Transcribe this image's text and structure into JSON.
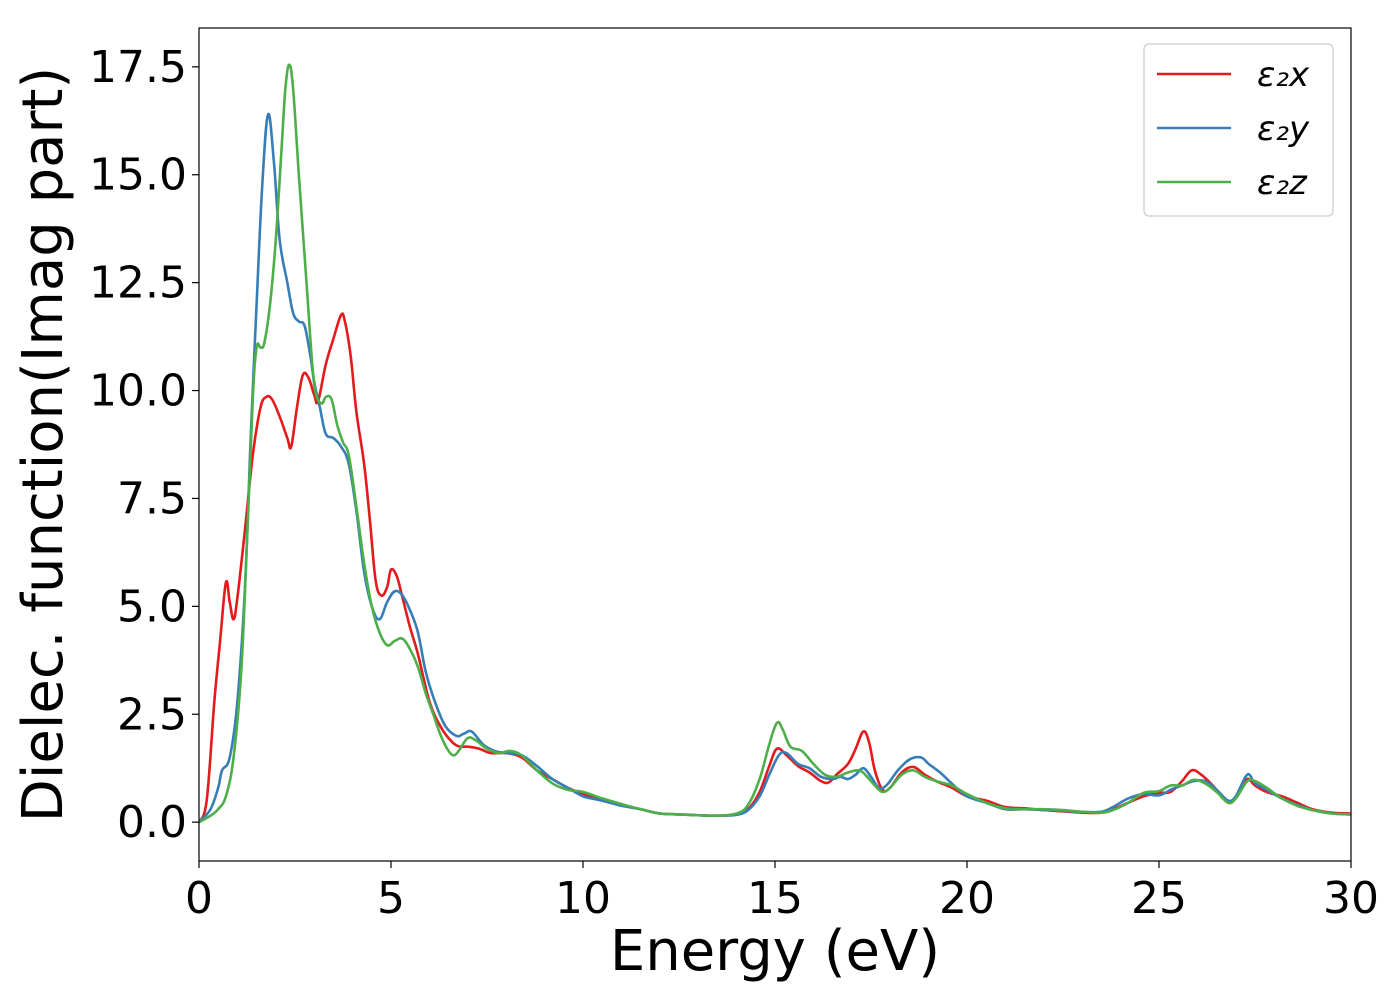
{
  "chart_data": {
    "type": "line",
    "xlabel": "Energy (eV)",
    "ylabel": "Dielec. function(Imag part)",
    "xlim": [
      0,
      30
    ],
    "ylim": [
      -0.9,
      18.4
    ],
    "xticks": [
      0,
      5,
      10,
      15,
      20,
      25,
      30
    ],
    "xtick_labels": [
      "0",
      "5",
      "10",
      "15",
      "20",
      "25",
      "30"
    ],
    "yticks": [
      0,
      2.5,
      5,
      7.5,
      10,
      12.5,
      15,
      17.5
    ],
    "ytick_labels": [
      "0.0",
      "2.5",
      "5.0",
      "7.5",
      "10.0",
      "12.5",
      "15.0",
      "17.5"
    ],
    "grid": false,
    "legend_position": "top-right",
    "series": [
      {
        "name": "ε₂x",
        "color": "#e41a1c",
        "points": [
          [
            0,
            0
          ],
          [
            0.2,
            0.5
          ],
          [
            0.4,
            2.8
          ],
          [
            0.55,
            4.2
          ],
          [
            0.7,
            5.55
          ],
          [
            0.8,
            5.1
          ],
          [
            0.9,
            4.7
          ],
          [
            1.0,
            5.2
          ],
          [
            1.2,
            6.8
          ],
          [
            1.4,
            8.5
          ],
          [
            1.6,
            9.6
          ],
          [
            1.75,
            9.85
          ],
          [
            1.9,
            9.8
          ],
          [
            2.1,
            9.4
          ],
          [
            2.3,
            8.9
          ],
          [
            2.4,
            8.7
          ],
          [
            2.55,
            9.6
          ],
          [
            2.7,
            10.35
          ],
          [
            2.85,
            10.3
          ],
          [
            3.0,
            9.9
          ],
          [
            3.1,
            9.75
          ],
          [
            3.3,
            10.6
          ],
          [
            3.5,
            11.2
          ],
          [
            3.7,
            11.75
          ],
          [
            3.8,
            11.6
          ],
          [
            3.95,
            10.8
          ],
          [
            4.1,
            9.5
          ],
          [
            4.3,
            8.3
          ],
          [
            4.45,
            7.0
          ],
          [
            4.6,
            5.6
          ],
          [
            4.75,
            5.25
          ],
          [
            4.9,
            5.45
          ],
          [
            5.0,
            5.85
          ],
          [
            5.15,
            5.7
          ],
          [
            5.3,
            5.2
          ],
          [
            5.5,
            4.5
          ],
          [
            5.7,
            3.9
          ],
          [
            6.0,
            2.8
          ],
          [
            6.3,
            2.2
          ],
          [
            6.6,
            1.85
          ],
          [
            6.8,
            1.75
          ],
          [
            7.0,
            1.75
          ],
          [
            7.3,
            1.7
          ],
          [
            7.6,
            1.6
          ],
          [
            8.0,
            1.6
          ],
          [
            8.4,
            1.5
          ],
          [
            8.8,
            1.2
          ],
          [
            9.2,
            1.0
          ],
          [
            9.6,
            0.8
          ],
          [
            10.0,
            0.65
          ],
          [
            10.5,
            0.5
          ],
          [
            11.0,
            0.4
          ],
          [
            11.5,
            0.3
          ],
          [
            12.0,
            0.2
          ],
          [
            12.5,
            0.18
          ],
          [
            13.0,
            0.16
          ],
          [
            13.5,
            0.15
          ],
          [
            14.0,
            0.18
          ],
          [
            14.3,
            0.3
          ],
          [
            14.6,
            0.7
          ],
          [
            14.85,
            1.3
          ],
          [
            15.05,
            1.7
          ],
          [
            15.3,
            1.55
          ],
          [
            15.6,
            1.3
          ],
          [
            15.9,
            1.15
          ],
          [
            16.2,
            0.95
          ],
          [
            16.4,
            0.92
          ],
          [
            16.6,
            1.1
          ],
          [
            16.9,
            1.35
          ],
          [
            17.1,
            1.7
          ],
          [
            17.3,
            2.1
          ],
          [
            17.45,
            1.85
          ],
          [
            17.6,
            1.2
          ],
          [
            17.8,
            0.75
          ],
          [
            18.0,
            0.8
          ],
          [
            18.3,
            1.15
          ],
          [
            18.6,
            1.28
          ],
          [
            18.9,
            1.1
          ],
          [
            19.2,
            0.95
          ],
          [
            19.6,
            0.8
          ],
          [
            20.0,
            0.6
          ],
          [
            20.5,
            0.5
          ],
          [
            21.0,
            0.35
          ],
          [
            21.5,
            0.32
          ],
          [
            22.0,
            0.28
          ],
          [
            22.5,
            0.25
          ],
          [
            23.0,
            0.22
          ],
          [
            23.5,
            0.22
          ],
          [
            23.8,
            0.3
          ],
          [
            24.2,
            0.45
          ],
          [
            24.6,
            0.6
          ],
          [
            25.0,
            0.68
          ],
          [
            25.3,
            0.7
          ],
          [
            25.6,
            0.95
          ],
          [
            25.85,
            1.2
          ],
          [
            26.1,
            1.1
          ],
          [
            26.4,
            0.85
          ],
          [
            26.7,
            0.55
          ],
          [
            26.9,
            0.5
          ],
          [
            27.1,
            0.7
          ],
          [
            27.3,
            1.0
          ],
          [
            27.5,
            0.85
          ],
          [
            27.8,
            0.7
          ],
          [
            28.2,
            0.6
          ],
          [
            28.6,
            0.45
          ],
          [
            29.0,
            0.3
          ],
          [
            29.5,
            0.22
          ],
          [
            30.0,
            0.2
          ]
        ]
      },
      {
        "name": "ε₂y",
        "color": "#377eb8",
        "points": [
          [
            0,
            0
          ],
          [
            0.3,
            0.3
          ],
          [
            0.5,
            0.8
          ],
          [
            0.6,
            1.2
          ],
          [
            0.8,
            1.5
          ],
          [
            1.0,
            2.8
          ],
          [
            1.2,
            5.5
          ],
          [
            1.35,
            9.0
          ],
          [
            1.5,
            12.0
          ],
          [
            1.65,
            14.8
          ],
          [
            1.8,
            16.4
          ],
          [
            1.95,
            15.3
          ],
          [
            2.1,
            13.5
          ],
          [
            2.3,
            12.5
          ],
          [
            2.45,
            11.8
          ],
          [
            2.6,
            11.6
          ],
          [
            2.75,
            11.5
          ],
          [
            2.9,
            10.8
          ],
          [
            3.0,
            10.2
          ],
          [
            3.15,
            9.6
          ],
          [
            3.3,
            9.0
          ],
          [
            3.5,
            8.9
          ],
          [
            3.7,
            8.7
          ],
          [
            3.9,
            8.3
          ],
          [
            4.1,
            7.2
          ],
          [
            4.3,
            5.8
          ],
          [
            4.5,
            5.0
          ],
          [
            4.7,
            4.7
          ],
          [
            4.9,
            5.1
          ],
          [
            5.1,
            5.35
          ],
          [
            5.3,
            5.25
          ],
          [
            5.5,
            4.9
          ],
          [
            5.7,
            4.4
          ],
          [
            5.9,
            3.5
          ],
          [
            6.1,
            2.9
          ],
          [
            6.4,
            2.25
          ],
          [
            6.7,
            2.0
          ],
          [
            6.9,
            2.05
          ],
          [
            7.1,
            2.1
          ],
          [
            7.4,
            1.8
          ],
          [
            7.7,
            1.65
          ],
          [
            8.0,
            1.6
          ],
          [
            8.4,
            1.55
          ],
          [
            8.8,
            1.3
          ],
          [
            9.2,
            1.0
          ],
          [
            9.6,
            0.8
          ],
          [
            10.0,
            0.6
          ],
          [
            10.5,
            0.5
          ],
          [
            11.0,
            0.38
          ],
          [
            11.5,
            0.3
          ],
          [
            12.0,
            0.2
          ],
          [
            12.5,
            0.18
          ],
          [
            13.0,
            0.16
          ],
          [
            13.5,
            0.15
          ],
          [
            14.0,
            0.17
          ],
          [
            14.3,
            0.28
          ],
          [
            14.6,
            0.6
          ],
          [
            14.85,
            1.1
          ],
          [
            15.1,
            1.55
          ],
          [
            15.3,
            1.6
          ],
          [
            15.6,
            1.35
          ],
          [
            15.9,
            1.25
          ],
          [
            16.2,
            1.05
          ],
          [
            16.5,
            1.0
          ],
          [
            16.7,
            1.05
          ],
          [
            16.9,
            1.0
          ],
          [
            17.1,
            1.1
          ],
          [
            17.3,
            1.25
          ],
          [
            17.5,
            1.05
          ],
          [
            17.7,
            0.8
          ],
          [
            17.9,
            0.85
          ],
          [
            18.2,
            1.2
          ],
          [
            18.5,
            1.45
          ],
          [
            18.8,
            1.5
          ],
          [
            19.0,
            1.35
          ],
          [
            19.3,
            1.15
          ],
          [
            19.6,
            0.9
          ],
          [
            20.0,
            0.6
          ],
          [
            20.5,
            0.45
          ],
          [
            21.0,
            0.3
          ],
          [
            21.5,
            0.3
          ],
          [
            22.0,
            0.28
          ],
          [
            22.5,
            0.26
          ],
          [
            23.0,
            0.24
          ],
          [
            23.5,
            0.24
          ],
          [
            23.8,
            0.35
          ],
          [
            24.2,
            0.55
          ],
          [
            24.6,
            0.65
          ],
          [
            25.0,
            0.62
          ],
          [
            25.3,
            0.75
          ],
          [
            25.6,
            0.85
          ],
          [
            25.9,
            0.95
          ],
          [
            26.2,
            0.95
          ],
          [
            26.5,
            0.75
          ],
          [
            26.8,
            0.5
          ],
          [
            27.0,
            0.6
          ],
          [
            27.3,
            1.1
          ],
          [
            27.5,
            0.9
          ],
          [
            27.8,
            0.75
          ],
          [
            28.2,
            0.55
          ],
          [
            28.6,
            0.4
          ],
          [
            29.0,
            0.28
          ],
          [
            29.5,
            0.2
          ],
          [
            30.0,
            0.18
          ]
        ]
      },
      {
        "name": "ε₂z",
        "color": "#4daf4a",
        "points": [
          [
            0,
            0
          ],
          [
            0.3,
            0.15
          ],
          [
            0.5,
            0.3
          ],
          [
            0.7,
            0.6
          ],
          [
            0.9,
            1.5
          ],
          [
            1.1,
            3.5
          ],
          [
            1.25,
            6.5
          ],
          [
            1.4,
            9.8
          ],
          [
            1.5,
            11.0
          ],
          [
            1.6,
            11.0
          ],
          [
            1.7,
            11.1
          ],
          [
            1.85,
            12.0
          ],
          [
            2.0,
            13.5
          ],
          [
            2.15,
            15.6
          ],
          [
            2.25,
            17.0
          ],
          [
            2.35,
            17.55
          ],
          [
            2.45,
            17.0
          ],
          [
            2.6,
            15.0
          ],
          [
            2.8,
            12.5
          ],
          [
            2.95,
            10.6
          ],
          [
            3.05,
            9.9
          ],
          [
            3.2,
            9.7
          ],
          [
            3.3,
            9.85
          ],
          [
            3.45,
            9.8
          ],
          [
            3.6,
            9.2
          ],
          [
            3.75,
            8.8
          ],
          [
            3.9,
            8.5
          ],
          [
            4.1,
            7.3
          ],
          [
            4.3,
            6.0
          ],
          [
            4.5,
            5.0
          ],
          [
            4.7,
            4.4
          ],
          [
            4.9,
            4.1
          ],
          [
            5.1,
            4.2
          ],
          [
            5.3,
            4.25
          ],
          [
            5.5,
            4.0
          ],
          [
            5.7,
            3.6
          ],
          [
            5.9,
            3.0
          ],
          [
            6.1,
            2.5
          ],
          [
            6.3,
            2.0
          ],
          [
            6.5,
            1.65
          ],
          [
            6.65,
            1.55
          ],
          [
            6.8,
            1.7
          ],
          [
            7.0,
            1.95
          ],
          [
            7.2,
            1.9
          ],
          [
            7.5,
            1.7
          ],
          [
            7.8,
            1.6
          ],
          [
            8.1,
            1.65
          ],
          [
            8.4,
            1.55
          ],
          [
            8.8,
            1.2
          ],
          [
            9.2,
            0.9
          ],
          [
            9.6,
            0.75
          ],
          [
            10.0,
            0.7
          ],
          [
            10.5,
            0.55
          ],
          [
            11.0,
            0.42
          ],
          [
            11.5,
            0.3
          ],
          [
            12.0,
            0.2
          ],
          [
            12.5,
            0.18
          ],
          [
            13.0,
            0.16
          ],
          [
            13.5,
            0.15
          ],
          [
            14.0,
            0.2
          ],
          [
            14.3,
            0.4
          ],
          [
            14.6,
            1.0
          ],
          [
            14.85,
            1.8
          ],
          [
            15.05,
            2.3
          ],
          [
            15.2,
            2.15
          ],
          [
            15.4,
            1.75
          ],
          [
            15.7,
            1.65
          ],
          [
            16.0,
            1.35
          ],
          [
            16.3,
            1.1
          ],
          [
            16.6,
            1.05
          ],
          [
            16.9,
            1.15
          ],
          [
            17.2,
            1.2
          ],
          [
            17.4,
            1.05
          ],
          [
            17.6,
            0.85
          ],
          [
            17.8,
            0.7
          ],
          [
            18.0,
            0.8
          ],
          [
            18.3,
            1.1
          ],
          [
            18.6,
            1.2
          ],
          [
            18.9,
            1.05
          ],
          [
            19.2,
            0.95
          ],
          [
            19.6,
            0.85
          ],
          [
            20.0,
            0.65
          ],
          [
            20.5,
            0.45
          ],
          [
            21.0,
            0.32
          ],
          [
            21.5,
            0.3
          ],
          [
            22.0,
            0.3
          ],
          [
            22.5,
            0.28
          ],
          [
            23.0,
            0.24
          ],
          [
            23.5,
            0.22
          ],
          [
            23.8,
            0.28
          ],
          [
            24.2,
            0.45
          ],
          [
            24.6,
            0.68
          ],
          [
            25.0,
            0.72
          ],
          [
            25.3,
            0.85
          ],
          [
            25.6,
            0.85
          ],
          [
            25.9,
            0.98
          ],
          [
            26.2,
            0.9
          ],
          [
            26.5,
            0.7
          ],
          [
            26.8,
            0.45
          ],
          [
            27.0,
            0.55
          ],
          [
            27.3,
            0.95
          ],
          [
            27.5,
            0.95
          ],
          [
            27.8,
            0.8
          ],
          [
            28.2,
            0.55
          ],
          [
            28.6,
            0.38
          ],
          [
            29.0,
            0.28
          ],
          [
            29.5,
            0.2
          ],
          [
            30.0,
            0.18
          ]
        ]
      }
    ]
  }
}
